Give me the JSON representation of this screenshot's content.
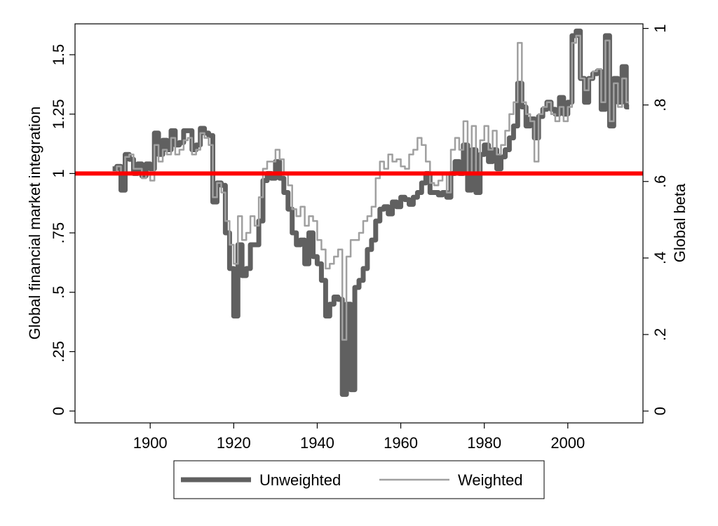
{
  "chart_data": {
    "type": "line",
    "title": "",
    "xlabel": "",
    "ylabel": "Global financial market integration",
    "y2label": "Global beta",
    "xlim": [
      1882,
      2018
    ],
    "ylim": [
      -0.05,
      1.63
    ],
    "y2lim": [
      -0.031,
      1.012
    ],
    "x_ticks": [
      1900,
      1920,
      1940,
      1960,
      1980,
      2000
    ],
    "y_ticks": [
      0,
      0.25,
      0.5,
      0.75,
      1,
      1.25,
      1.5
    ],
    "y_tick_labels": [
      "0",
      ".25",
      ".5",
      ".75",
      "1",
      "1.25",
      "1.5"
    ],
    "y2_ticks": [
      0,
      0.2,
      0.4,
      0.6,
      0.8,
      1
    ],
    "y2_tick_labels": [
      "0",
      ".2",
      ".4",
      ".6",
      ".8",
      "1"
    ],
    "reference_line": {
      "y": 1,
      "color": "#ff0000"
    },
    "grid": false,
    "legend_position": "bottom",
    "series": [
      {
        "name": "Unweighted",
        "color": "#606060",
        "x": [
          1891,
          1892,
          1893,
          1894,
          1895,
          1896,
          1897,
          1898,
          1899,
          1900,
          1901,
          1902,
          1903,
          1904,
          1905,
          1906,
          1907,
          1908,
          1909,
          1910,
          1911,
          1912,
          1913,
          1914,
          1915,
          1916,
          1917,
          1918,
          1919,
          1920,
          1921,
          1922,
          1923,
          1924,
          1925,
          1926,
          1927,
          1928,
          1929,
          1930,
          1931,
          1932,
          1933,
          1934,
          1935,
          1936,
          1937,
          1938,
          1939,
          1940,
          1941,
          1942,
          1943,
          1944,
          1945,
          1946,
          1947,
          1948,
          1949,
          1950,
          1951,
          1952,
          1953,
          1954,
          1955,
          1956,
          1957,
          1958,
          1959,
          1960,
          1961,
          1962,
          1963,
          1964,
          1965,
          1966,
          1967,
          1968,
          1969,
          1970,
          1971,
          1972,
          1973,
          1974,
          1975,
          1976,
          1977,
          1978,
          1979,
          1980,
          1981,
          1982,
          1983,
          1984,
          1985,
          1986,
          1987,
          1988,
          1989,
          1990,
          1991,
          1992,
          1993,
          1994,
          1995,
          1996,
          1997,
          1998,
          1999,
          2000,
          2001,
          2002,
          2003,
          2004,
          2005,
          2006,
          2007,
          2008,
          2009,
          2010,
          2011,
          2012,
          2013,
          2014
        ],
        "values": [
          1.02,
          1.03,
          0.93,
          1.08,
          1.06,
          1.0,
          1.04,
          0.99,
          1.04,
          1.02,
          1.17,
          1.08,
          1.14,
          1.1,
          1.18,
          1.12,
          1.13,
          1.18,
          1.18,
          1.1,
          1.12,
          1.19,
          1.17,
          1.16,
          0.88,
          0.96,
          0.95,
          0.75,
          0.6,
          0.4,
          0.7,
          0.57,
          0.6,
          0.7,
          0.7,
          0.8,
          0.97,
          1.0,
          0.98,
          1.05,
          0.98,
          0.92,
          0.85,
          0.75,
          0.7,
          0.72,
          0.62,
          0.75,
          0.65,
          0.62,
          0.55,
          0.4,
          0.45,
          0.48,
          0.47,
          0.07,
          0.45,
          0.09,
          0.52,
          0.55,
          0.6,
          0.68,
          0.72,
          0.8,
          0.85,
          0.86,
          0.83,
          0.88,
          0.86,
          0.9,
          0.89,
          0.87,
          0.9,
          0.92,
          0.96,
          1.0,
          0.92,
          0.92,
          0.91,
          0.92,
          0.9,
          1.0,
          1.05,
          1.0,
          1.12,
          0.93,
          1.1,
          0.92,
          1.08,
          1.12,
          1.05,
          1.1,
          1.02,
          1.07,
          1.1,
          1.15,
          1.2,
          1.38,
          1.28,
          1.2,
          1.23,
          1.15,
          1.24,
          1.27,
          1.3,
          1.27,
          1.25,
          1.32,
          1.25,
          1.3,
          1.58,
          1.6,
          1.4,
          1.3,
          1.4,
          1.42,
          1.43,
          1.27,
          1.58,
          1.2,
          1.4,
          1.3,
          1.45,
          1.28
        ]
      },
      {
        "name": "Weighted",
        "color": "#a0a0a0",
        "x": [
          1891,
          1892,
          1893,
          1894,
          1895,
          1896,
          1897,
          1898,
          1899,
          1900,
          1901,
          1902,
          1903,
          1904,
          1905,
          1906,
          1907,
          1908,
          1909,
          1910,
          1911,
          1912,
          1913,
          1914,
          1915,
          1916,
          1917,
          1918,
          1919,
          1920,
          1921,
          1922,
          1923,
          1924,
          1925,
          1926,
          1927,
          1928,
          1929,
          1930,
          1931,
          1932,
          1933,
          1934,
          1935,
          1936,
          1937,
          1938,
          1939,
          1940,
          1941,
          1942,
          1943,
          1944,
          1945,
          1946,
          1947,
          1948,
          1949,
          1950,
          1951,
          1952,
          1953,
          1954,
          1955,
          1956,
          1957,
          1958,
          1959,
          1960,
          1961,
          1962,
          1963,
          1964,
          1965,
          1966,
          1967,
          1968,
          1969,
          1970,
          1971,
          1972,
          1973,
          1974,
          1975,
          1976,
          1977,
          1978,
          1979,
          1980,
          1981,
          1982,
          1983,
          1984,
          1985,
          1986,
          1987,
          1988,
          1989,
          1990,
          1991,
          1992,
          1993,
          1994,
          1995,
          1996,
          1997,
          1998,
          1999,
          2000,
          2001,
          2002,
          2003,
          2004,
          2005,
          2006,
          2007,
          2008,
          2009,
          2010,
          2011,
          2012,
          2013,
          2014
        ],
        "values": [
          1.0,
          1.03,
          1.0,
          1.07,
          1.08,
          1.02,
          1.02,
          0.98,
          1.0,
          0.97,
          1.12,
          1.05,
          1.1,
          1.08,
          1.15,
          1.08,
          1.1,
          1.14,
          1.15,
          1.08,
          1.1,
          1.17,
          1.15,
          1.12,
          0.9,
          0.96,
          0.92,
          0.8,
          0.7,
          0.62,
          0.82,
          0.72,
          0.75,
          0.82,
          0.78,
          0.9,
          1.02,
          1.05,
          1.05,
          1.1,
          1.06,
          1.0,
          0.95,
          0.85,
          0.82,
          0.86,
          0.78,
          0.82,
          0.8,
          0.72,
          0.68,
          0.6,
          0.62,
          0.65,
          0.68,
          0.3,
          0.65,
          0.72,
          0.72,
          0.75,
          0.8,
          0.82,
          0.86,
          0.98,
          1.05,
          1.02,
          1.08,
          1.05,
          1.06,
          1.03,
          1.02,
          1.08,
          1.1,
          1.15,
          1.12,
          1.05,
          0.96,
          0.95,
          0.97,
          1.0,
          0.92,
          1.1,
          1.15,
          1.1,
          1.22,
          1.0,
          1.2,
          1.0,
          1.14,
          1.2,
          1.1,
          1.18,
          1.08,
          1.12,
          1.18,
          1.25,
          1.3,
          1.55,
          1.3,
          1.25,
          1.22,
          1.05,
          1.25,
          1.28,
          1.3,
          1.25,
          1.22,
          1.28,
          1.22,
          1.28,
          1.55,
          1.58,
          1.4,
          1.35,
          1.4,
          1.43,
          1.44,
          1.3,
          1.56,
          1.22,
          1.38,
          1.28,
          1.4,
          1.3
        ]
      }
    ]
  }
}
